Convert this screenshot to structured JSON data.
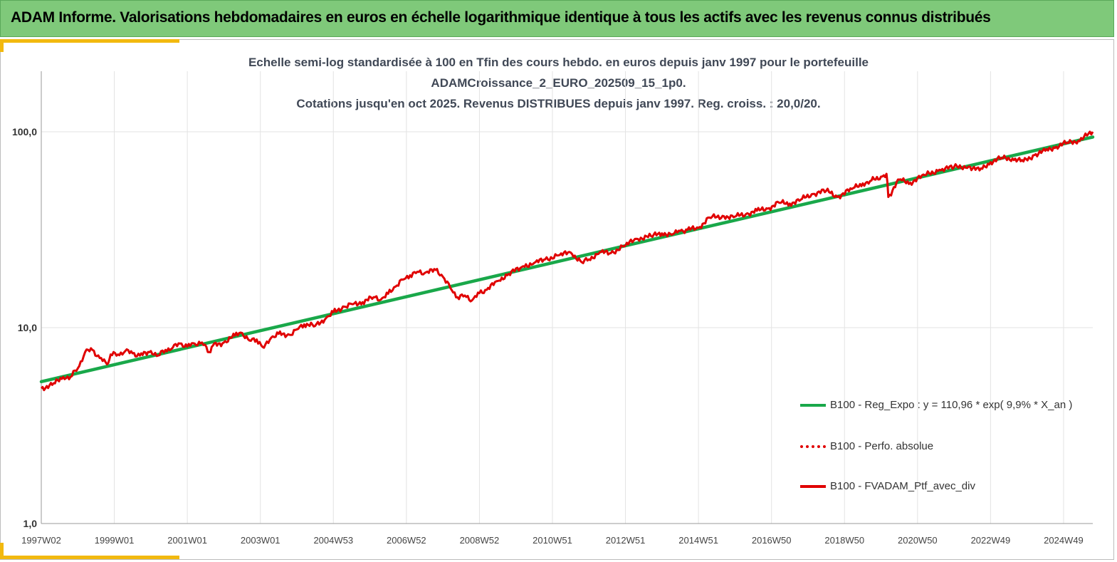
{
  "banner": {
    "title": "ADAM Informe. Valorisations hebdomadaires en euros en échelle logarithmique identique à tous les actifs avec les revenus connus distribués"
  },
  "colors": {
    "banner_bg": "#7fc97a",
    "accent": "#f2b90f",
    "regression": "#19a84a",
    "portfolio": "#e00000"
  },
  "chart_data": {
    "type": "line",
    "title_lines": [
      "Echelle semi-log standardisée à 100 en Tfin des cours hebdo.  en euros depuis janv 1997 pour le portefeuille",
      "ADAMCroissance_2_EURO_202509_15_1p0.",
      "Cotations jusqu'en oct 2025. Revenus DISTRIBUES depuis janv 1997. Reg. croiss. : 20,0/20."
    ],
    "y_scale": "log",
    "ylim": [
      1,
      100
    ],
    "y_ticks": [
      {
        "value": 100,
        "label": "100,0"
      },
      {
        "value": 10,
        "label": "10,0"
      },
      {
        "value": 1,
        "label": "1,0"
      }
    ],
    "xlim": [
      1997.0,
      2025.8
    ],
    "x_ticks": [
      {
        "value": 1997.0,
        "label": "1997W02"
      },
      {
        "value": 1999.0,
        "label": "1999W01"
      },
      {
        "value": 2001.0,
        "label": "2001W01"
      },
      {
        "value": 2003.0,
        "label": "2003W01"
      },
      {
        "value": 2005.0,
        "label": "2004W53"
      },
      {
        "value": 2007.0,
        "label": "2006W52"
      },
      {
        "value": 2009.0,
        "label": "2008W52"
      },
      {
        "value": 2011.0,
        "label": "2010W51"
      },
      {
        "value": 2013.0,
        "label": "2012W51"
      },
      {
        "value": 2015.0,
        "label": "2014W51"
      },
      {
        "value": 2017.0,
        "label": "2016W50"
      },
      {
        "value": 2019.0,
        "label": "2018W50"
      },
      {
        "value": 2021.0,
        "label": "2020W50"
      },
      {
        "value": 2023.0,
        "label": "2022W49"
      },
      {
        "value": 2025.0,
        "label": "2024W49"
      }
    ],
    "legend_position": "bottom-right",
    "grid": "vertical",
    "series": [
      {
        "name": "B100 - Reg_Expo : y = 110,96 * exp( 9,9% *  X_an )",
        "style": "solid",
        "x": [
          1997.0,
          2025.8
        ],
        "y": [
          5.3,
          94.0
        ]
      },
      {
        "name": "B100 - Perfo. absolue",
        "style": "dotted",
        "x": [],
        "y": []
      },
      {
        "name": "B100 - FVADAM_Ptf_avec_div",
        "style": "solid",
        "x": [
          1997.0,
          1997.3,
          1997.6,
          1997.8,
          1998.0,
          1998.2,
          1998.4,
          1998.6,
          1998.8,
          1998.9,
          1999.1,
          1999.3,
          1999.5,
          1999.7,
          2000.0,
          2000.2,
          2000.4,
          2000.6,
          2000.8,
          2001.0,
          2001.2,
          2001.4,
          2001.6,
          2001.7,
          2002.0,
          2002.3,
          2002.5,
          2002.7,
          2002.9,
          2003.1,
          2003.3,
          2003.5,
          2003.8,
          2004.0,
          2004.2,
          2004.5,
          2004.8,
          2005.0,
          2005.3,
          2005.5,
          2005.8,
          2006.1,
          2006.3,
          2006.5,
          2006.7,
          2006.9,
          2007.1,
          2007.3,
          2007.5,
          2007.8,
          2008.0,
          2008.2,
          2008.4,
          2008.6,
          2008.8,
          2009.0,
          2009.2,
          2009.5,
          2009.8,
          2010.2,
          2010.5,
          2010.8,
          2011.2,
          2011.5,
          2011.8,
          2012.0,
          2012.3,
          2012.6,
          2013.0,
          2013.3,
          2013.7,
          2014.0,
          2014.3,
          2014.5,
          2014.7,
          2015.0,
          2015.3,
          2015.7,
          2016.0,
          2016.3,
          2016.6,
          2016.9,
          2017.2,
          2017.5,
          2017.8,
          2018.1,
          2018.5,
          2018.8,
          2019.2,
          2019.5,
          2019.7,
          2020.0,
          2020.15,
          2020.2,
          2020.5,
          2020.8,
          2021.2,
          2021.6,
          2022.0,
          2022.4,
          2022.7,
          2023.0,
          2023.3,
          2023.6,
          2023.9,
          2024.2,
          2024.5,
          2024.8,
          2025.1,
          2025.4,
          2025.8
        ],
        "y": [
          4.9,
          5.1,
          5.6,
          5.6,
          6.2,
          7.5,
          7.7,
          7.0,
          6.5,
          7.3,
          7.3,
          7.6,
          7.4,
          7.2,
          7.6,
          7.2,
          7.7,
          7.9,
          8.3,
          8.0,
          8.3,
          8.4,
          7.5,
          8.1,
          8.4,
          9.1,
          9.4,
          8.6,
          8.7,
          7.9,
          8.9,
          9.3,
          9.2,
          9.8,
          10.4,
          10.2,
          11.2,
          12.0,
          12.8,
          13.2,
          13.5,
          14.3,
          13.9,
          14.9,
          16.2,
          17.6,
          18.5,
          19.3,
          19.0,
          19.7,
          18.2,
          16.0,
          14.3,
          14.6,
          13.8,
          15.0,
          15.6,
          17.3,
          18.8,
          20.6,
          21.4,
          22.3,
          23.5,
          24.2,
          21.6,
          22.3,
          24.3,
          24.0,
          26.3,
          28.4,
          29.3,
          30.3,
          30.0,
          31.2,
          31.6,
          32.3,
          36.5,
          37.0,
          36.9,
          38.0,
          39.5,
          40.5,
          43.5,
          43.0,
          45.0,
          48.0,
          50.0,
          46.5,
          51.0,
          54.5,
          56.0,
          59.0,
          61.0,
          46.5,
          57.0,
          55.0,
          60.0,
          64.0,
          66.0,
          66.5,
          63.5,
          70.0,
          73.5,
          73.0,
          70.5,
          76.0,
          80.0,
          84.0,
          88.0,
          90.0,
          100.0
        ]
      }
    ]
  }
}
